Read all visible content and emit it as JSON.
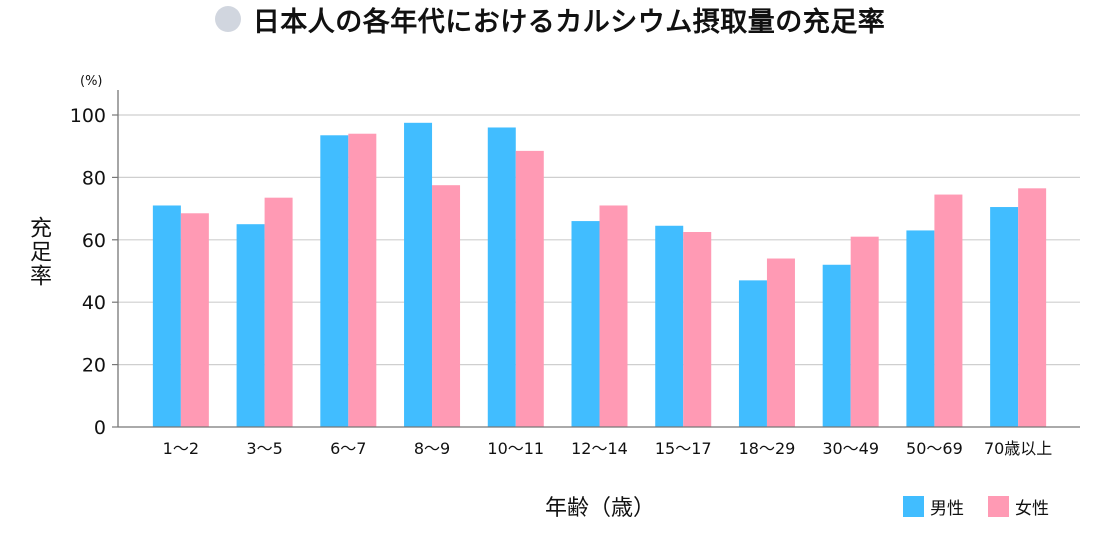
{
  "colors": {
    "title_bullet": "#d1d6df",
    "grid": "#cfcfcf",
    "axis": "#777777"
  },
  "chart_data": {
    "type": "bar",
    "title": "日本人の各年代におけるカルシウム摂取量の充足率",
    "xlabel": "年齢（歳）",
    "ylabel": "充足率",
    "yunit": "(%)",
    "ylim": [
      0,
      100
    ],
    "yticks": [
      "0",
      "20",
      "40",
      "60",
      "80",
      "100"
    ],
    "grid": true,
    "legend": "bottom-right",
    "categories": [
      "1〜2",
      "3〜5",
      "6〜7",
      "8〜9",
      "10〜11",
      "12〜14",
      "15〜17",
      "18〜29",
      "30〜49",
      "50〜69",
      "70歳以上"
    ],
    "series": [
      {
        "name": "男性",
        "color": "#41bdff",
        "values": [
          71,
          65,
          93.5,
          97.5,
          96,
          66,
          64.5,
          47,
          52,
          63,
          70.5
        ]
      },
      {
        "name": "女性",
        "color": "#ff9ab4",
        "values": [
          68.5,
          73.5,
          94,
          77.5,
          88.5,
          71,
          62.5,
          54,
          61,
          74.5,
          76.5
        ]
      }
    ]
  }
}
